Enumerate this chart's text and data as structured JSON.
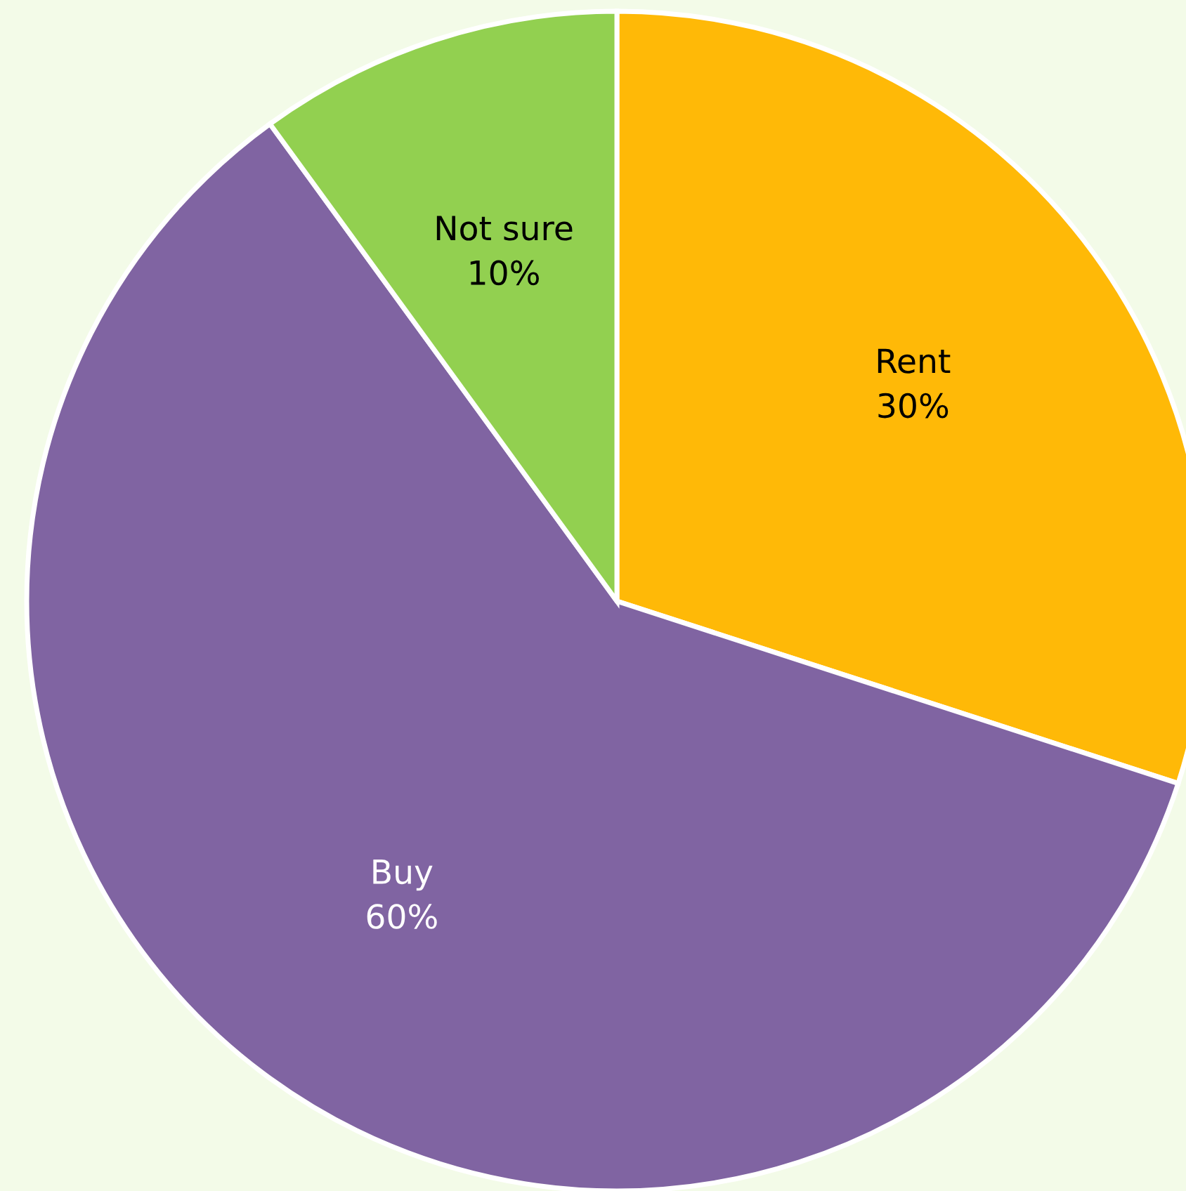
{
  "chart_data": {
    "type": "pie",
    "categories": [
      "Rent",
      "Buy",
      "Not sure"
    ],
    "values": [
      30,
      60,
      10
    ],
    "colors": [
      "#ffb907",
      "#8064a2",
      "#92d050"
    ],
    "value_labels": [
      "30%",
      "60%",
      "10%"
    ]
  }
}
